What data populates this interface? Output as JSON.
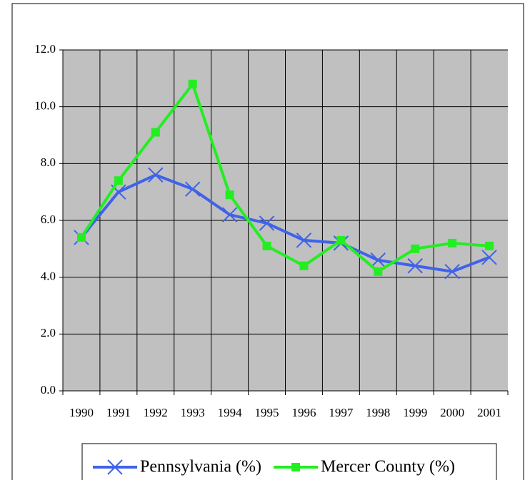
{
  "chart_data": {
    "type": "line",
    "categories": [
      "1990",
      "1991",
      "1992",
      "1993",
      "1994",
      "1995",
      "1996",
      "1997",
      "1998",
      "1999",
      "2000",
      "2001"
    ],
    "series": [
      {
        "name": "Pennsylvania (%)",
        "color": "#3f63e8",
        "marker": "x",
        "values": [
          5.4,
          7.0,
          7.6,
          7.1,
          6.2,
          5.9,
          5.3,
          5.2,
          4.6,
          4.4,
          4.2,
          4.7
        ]
      },
      {
        "name": "Mercer County (%)",
        "color": "#22ee22",
        "marker": "square",
        "values": [
          5.4,
          7.4,
          9.1,
          10.8,
          6.9,
          5.1,
          4.4,
          5.3,
          4.2,
          5.0,
          5.2,
          5.1
        ]
      }
    ],
    "ylim": [
      0,
      12
    ],
    "yticks": [
      {
        "value": 0,
        "label": "0.0"
      },
      {
        "value": 2,
        "label": "2.0"
      },
      {
        "value": 4,
        "label": "4.0"
      },
      {
        "value": 6,
        "label": "6.0"
      },
      {
        "value": 8,
        "label": "8.0"
      },
      {
        "value": 10,
        "label": "10.0"
      },
      {
        "value": 12,
        "label": "12.0"
      }
    ],
    "grid": true,
    "legend": "bottom"
  }
}
